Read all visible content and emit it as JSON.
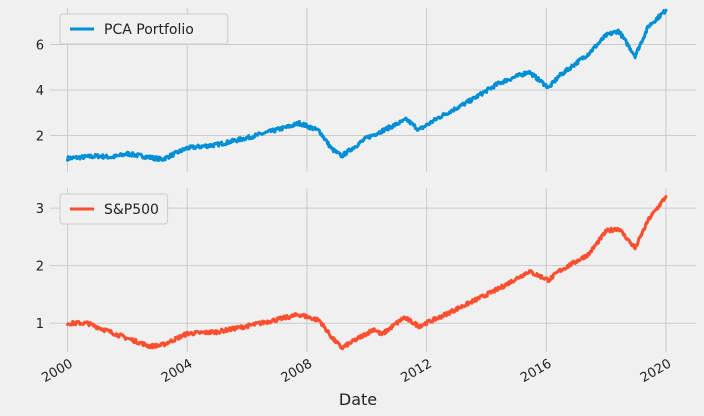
{
  "chart_data": [
    {
      "type": "line",
      "panel": "top",
      "xlabel": "",
      "ylabel": "",
      "xlim": [
        "1999-06-01",
        "2021-01-01"
      ],
      "ylim": [
        0.4,
        7.6
      ],
      "yticks": [
        2,
        4,
        6
      ],
      "legend": "top-left",
      "grid": true,
      "series": [
        {
          "name": "PCA Portfolio",
          "color": "#008fd5",
          "x": [
            "2000-01-01",
            "2001-01-01",
            "2001-07-01",
            "2002-01-01",
            "2002-07-01",
            "2003-03-01",
            "2004-01-01",
            "2005-01-01",
            "2006-01-01",
            "2007-06-01",
            "2007-10-01",
            "2008-06-01",
            "2008-11-01",
            "2009-03-01",
            "2010-01-01",
            "2011-05-01",
            "2011-10-01",
            "2012-06-01",
            "2013-06-01",
            "2014-06-01",
            "2015-06-01",
            "2016-02-01",
            "2016-06-01",
            "2017-06-01",
            "2018-01-01",
            "2018-06-01",
            "2018-12-20",
            "2019-06-01",
            "2019-12-31"
          ],
          "y": [
            1.0,
            1.1,
            1.05,
            1.2,
            1.1,
            0.95,
            1.45,
            1.6,
            1.9,
            2.4,
            2.55,
            2.2,
            1.4,
            1.1,
            1.9,
            2.7,
            2.25,
            2.8,
            3.5,
            4.3,
            4.8,
            4.1,
            4.6,
            5.6,
            6.4,
            6.6,
            5.5,
            6.8,
            7.5
          ]
        }
      ]
    },
    {
      "type": "line",
      "panel": "bottom",
      "xlabel": "Date",
      "ylabel": "",
      "xlim": [
        "1999-06-01",
        "2021-01-01"
      ],
      "ylim": [
        0.5,
        3.35
      ],
      "yticks": [
        1,
        2,
        3
      ],
      "xticks": [
        "2000-01-01",
        "2004-01-01",
        "2008-01-01",
        "2012-01-01",
        "2016-01-01",
        "2020-01-01"
      ],
      "xtick_labels": [
        "2000",
        "2004",
        "2008",
        "2012",
        "2016",
        "2020"
      ],
      "legend": "top-left",
      "grid": true,
      "series": [
        {
          "name": "S&P500",
          "color": "#fc4f30",
          "x": [
            "2000-01-01",
            "2000-09-01",
            "2001-09-01",
            "2002-10-01",
            "2003-03-01",
            "2004-01-01",
            "2005-01-01",
            "2006-01-01",
            "2007-10-01",
            "2008-06-01",
            "2008-11-01",
            "2009-03-01",
            "2010-04-01",
            "2010-07-01",
            "2011-04-01",
            "2011-10-01",
            "2012-06-01",
            "2013-06-01",
            "2014-06-01",
            "2015-06-01",
            "2016-02-01",
            "2016-06-01",
            "2017-06-01",
            "2018-01-01",
            "2018-06-01",
            "2018-12-20",
            "2019-06-01",
            "2019-12-31"
          ],
          "y": [
            1.0,
            1.0,
            0.8,
            0.6,
            0.62,
            0.82,
            0.85,
            0.95,
            1.15,
            1.05,
            0.75,
            0.57,
            0.9,
            0.8,
            1.1,
            0.95,
            1.1,
            1.35,
            1.6,
            1.9,
            1.75,
            1.9,
            2.2,
            2.6,
            2.65,
            2.3,
            2.8,
            3.2
          ]
        }
      ]
    }
  ]
}
